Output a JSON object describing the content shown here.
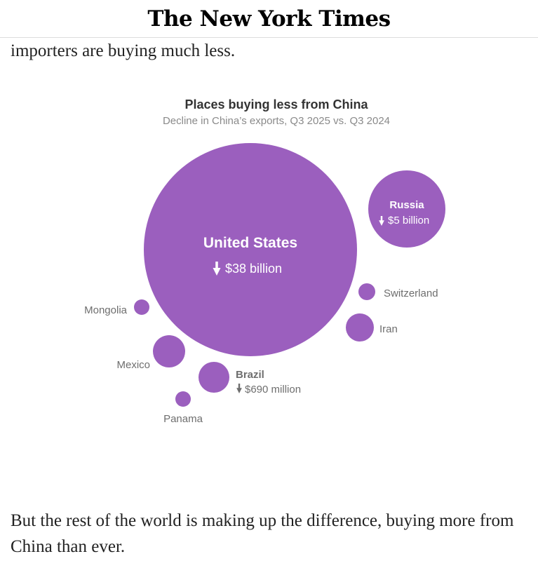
{
  "masthead": {
    "logo_text": "The New York Times"
  },
  "article": {
    "para_top": "importers are buying much less.",
    "para_bottom": "But the rest of the world is making up the difference, buying more from China than ever."
  },
  "colors": {
    "bubble": "#9b5fbe",
    "label_inside": "#ffffff",
    "label_outside": "#6e6e6e",
    "title": "#333333",
    "subtitle": "#8a8a8a"
  },
  "chart_data": {
    "type": "bubble",
    "title": "Places buying less from China",
    "subtitle": "Decline in China’s exports, Q3 2025 vs. Q3 2024",
    "unit": "USD decline",
    "series": [
      {
        "name": "United States",
        "label": "United States",
        "value_label": "$38 billion",
        "value_billions": 38,
        "emphasized": true
      },
      {
        "name": "Russia",
        "label": "Russia",
        "value_label": "$5 billion",
        "value_billions": 5,
        "emphasized": true
      },
      {
        "name": "Brazil",
        "label": "Brazil",
        "value_label": "$690 million",
        "value_billions": 0.69,
        "emphasized": true
      },
      {
        "name": "Mexico",
        "label": "Mexico",
        "value_label": "",
        "value_billions": 0.6,
        "emphasized": false
      },
      {
        "name": "Iran",
        "label": "Iran",
        "value_label": "",
        "value_billions": 0.5,
        "emphasized": false
      },
      {
        "name": "Switzerland",
        "label": "Switzerland",
        "value_label": "",
        "value_billions": 0.2,
        "emphasized": false
      },
      {
        "name": "Mongolia",
        "label": "Mongolia",
        "value_label": "",
        "value_billions": 0.15,
        "emphasized": false
      },
      {
        "name": "Panama",
        "label": "Panama",
        "value_label": "",
        "value_billions": 0.15,
        "emphasized": false
      }
    ]
  }
}
